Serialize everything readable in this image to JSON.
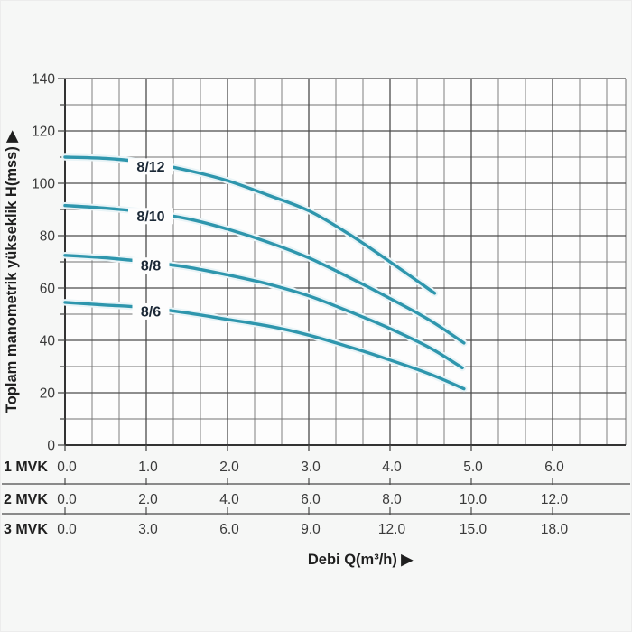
{
  "page": {
    "background": "#f6f7f6",
    "plot_background": "#fdfdfd"
  },
  "chart_data": {
    "type": "line",
    "title": "",
    "ylabel": "Toplam manometrik yükseklik H(mss) ▶",
    "xlabel": "Debi Q(m³/h) ▶",
    "ylim": [
      0,
      140
    ],
    "xlim_1mvk": [
      0,
      6.9
    ],
    "grid": true,
    "legend_position": "inline-curve-labels",
    "y_major_step": 20,
    "y_minor_step": 10,
    "x_major_step_1mvk": 1.0,
    "x_minor_divisions_per_major": 3,
    "y_ticks": [
      "0",
      "20",
      "40",
      "60",
      "80",
      "100",
      "120",
      "140"
    ],
    "x_axis_rows": [
      {
        "label": "1 MVK",
        "values": [
          "0.0",
          "1.0",
          "2.0",
          "3.0",
          "4.0",
          "5.0",
          "6.0"
        ]
      },
      {
        "label": "2 MVK",
        "values": [
          "0.0",
          "2.0",
          "4.0",
          "6.0",
          "8.0",
          "10.0",
          "12.0"
        ]
      },
      {
        "label": "3 MVK",
        "values": [
          "0.0",
          "3.0",
          "6.0",
          "9.0",
          "12.0",
          "15.0",
          "18.0"
        ]
      }
    ],
    "series": [
      {
        "name": "8/12",
        "points_q_h": [
          [
            0,
            110
          ],
          [
            0.5,
            109.5
          ],
          [
            1,
            108
          ],
          [
            1.5,
            105
          ],
          [
            2,
            101
          ],
          [
            2.5,
            95.5
          ],
          [
            3,
            89.5
          ],
          [
            3.5,
            80.5
          ],
          [
            4,
            70
          ],
          [
            4.55,
            58
          ]
        ]
      },
      {
        "name": "8/10",
        "points_q_h": [
          [
            0,
            91.5
          ],
          [
            0.5,
            90.5
          ],
          [
            1,
            89
          ],
          [
            1.5,
            86.5
          ],
          [
            2,
            82.5
          ],
          [
            2.5,
            77.5
          ],
          [
            3,
            71.5
          ],
          [
            3.5,
            64
          ],
          [
            4,
            56
          ],
          [
            4.5,
            47.5
          ],
          [
            4.91,
            39
          ]
        ]
      },
      {
        "name": "8/8",
        "points_q_h": [
          [
            0,
            72.5
          ],
          [
            0.5,
            71.5
          ],
          [
            1,
            70
          ],
          [
            1.5,
            68
          ],
          [
            2,
            65
          ],
          [
            2.5,
            61.5
          ],
          [
            3,
            57
          ],
          [
            3.5,
            51
          ],
          [
            4,
            44.5
          ],
          [
            4.5,
            37
          ],
          [
            4.89,
            29.5
          ]
        ]
      },
      {
        "name": "8/6",
        "points_q_h": [
          [
            0,
            54.5
          ],
          [
            0.5,
            53.5
          ],
          [
            1,
            52.5
          ],
          [
            1.5,
            50.5
          ],
          [
            2,
            48
          ],
          [
            2.5,
            45.5
          ],
          [
            3,
            42
          ],
          [
            3.5,
            37.5
          ],
          [
            4,
            32.5
          ],
          [
            4.5,
            27
          ],
          [
            4.91,
            21.5
          ]
        ]
      }
    ],
    "colors": {
      "curve": "#2e96ad",
      "curve_halo": "#e9f4f7",
      "grid_major": "#4c4c4c",
      "grid_minor": "#727272",
      "axis_spine": "#333333",
      "tick_text": "#3a3a3a",
      "bold_text": "#1f1f1f",
      "curve_label_text": "#1b2836",
      "separator_line": "#4a4a4a"
    }
  }
}
